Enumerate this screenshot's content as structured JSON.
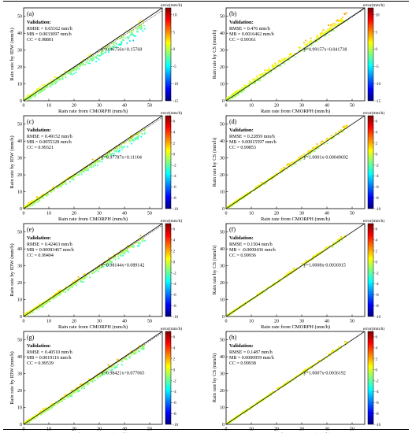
{
  "colorbar_label": "error(mm/h)",
  "colorbar_colors": [
    "#00007f",
    "#0000ff",
    "#007fff",
    "#00ffff",
    "#7fff7f",
    "#ffff00",
    "#ff7f00",
    "#ff0000",
    "#7f0000"
  ],
  "validation_label": "Validation:",
  "chart_data": [
    {
      "type": "scatter",
      "panel": "(a)",
      "xlabel": "Rain rate from CMORPH (mm/h)",
      "ylabel": "Rain rate by IDW (mm/h)",
      "xlim": [
        0,
        55
      ],
      "ylim": [
        0,
        55
      ],
      "xticks": [
        0,
        10,
        20,
        30,
        40,
        50
      ],
      "yticks": [
        0,
        10,
        20,
        30,
        40,
        50
      ],
      "rmse": "RMSE = 0.65162 mm/h",
      "mb": "MB = 0.0033097 mm/h",
      "cc": "CC = 0.98801",
      "fit": "y=0.96756x+0.15769",
      "slope": 0.96756,
      "intercept": 0.15769,
      "clim": [
        -15,
        12
      ],
      "cticks": [
        10,
        5,
        0,
        -5,
        -10,
        -15
      ],
      "spread": 1.6,
      "offset": -1.2
    },
    {
      "type": "scatter",
      "panel": "(b)",
      "xlabel": "Rain rate from CMORPH (mm/h)",
      "ylabel": "Rain rate by CS (mm/h)",
      "xlim": [
        0,
        55
      ],
      "ylim": [
        0,
        55
      ],
      "xticks": [
        0,
        10,
        20,
        30,
        40,
        50
      ],
      "yticks": [
        0,
        10,
        20,
        30,
        40,
        50
      ],
      "rmse": "RMSE = 0.476 mm/h",
      "mb": "MB = 0.0016462 mm/h",
      "cc": "CC = 0.99361",
      "fit": "y=0.99157x+0.041738",
      "slope": 0.99157,
      "intercept": 0.041738,
      "clim": [
        -15,
        12
      ],
      "cticks": [
        10,
        5,
        0,
        -5,
        -10,
        -15
      ],
      "spread": 1.3,
      "offset": 1.2
    },
    {
      "type": "scatter",
      "panel": "(c)",
      "xlabel": "Rain rate from CMORPH (mm/h)",
      "ylabel": "Rain rate by IDW (mm/h)",
      "xlim": [
        0,
        55
      ],
      "ylim": [
        0,
        55
      ],
      "xticks": [
        0,
        10,
        20,
        30,
        40,
        50
      ],
      "yticks": [
        0,
        10,
        20,
        30,
        40,
        50
      ],
      "rmse": "RMSE = 0.49152 mm/h",
      "mb": "MB = 0.0055328 mm/h",
      "cc": "CC = 0.99321",
      "fit": "y=0.97787x+0.11104",
      "slope": 0.97787,
      "intercept": 0.11104,
      "clim": [
        -10,
        7
      ],
      "cticks": [
        6,
        4,
        2,
        0,
        -2,
        -4,
        -6,
        -8,
        -10
      ],
      "spread": 1.2,
      "offset": -0.8
    },
    {
      "type": "scatter",
      "panel": "(d)",
      "xlabel": "Rain rate from CMORPH (mm/h)",
      "ylabel": "Rain rate by CS (mm/h)",
      "xlim": [
        0,
        55
      ],
      "ylim": [
        0,
        55
      ],
      "xticks": [
        0,
        10,
        20,
        30,
        40,
        50
      ],
      "yticks": [
        0,
        10,
        20,
        30,
        40,
        50
      ],
      "rmse": "RMSE = 0.22859 mm/h",
      "mb": "MB = 0.00015597 mm/h",
      "cc": "CC = 0.99853",
      "fit": "y=1.0001x-0.00049692",
      "slope": 1.0001,
      "intercept": -0.00049692,
      "clim": [
        -10,
        7
      ],
      "cticks": [
        6,
        4,
        2,
        0,
        -2,
        -4,
        -6,
        -8,
        -10
      ],
      "spread": 0.7,
      "offset": 0.3
    },
    {
      "type": "scatter",
      "panel": "(e)",
      "xlabel": "Rain rate from CMORPH (mm/h)",
      "ylabel": "Rain rate by IDW (mm/h)",
      "xlim": [
        0,
        55
      ],
      "ylim": [
        0,
        55
      ],
      "xticks": [
        0,
        10,
        20,
        30,
        40,
        50
      ],
      "yticks": [
        0,
        10,
        20,
        30,
        40,
        50
      ],
      "rmse": "RMSE = 0.42463 mm/h",
      "mb": "MB = 0.00083467 mm/h",
      "cc": "CC = 0.99494",
      "fit": "y=0.98144x+0.089142",
      "slope": 0.98144,
      "intercept": 0.089142,
      "clim": [
        -10,
        7
      ],
      "cticks": [
        6,
        4,
        2,
        0,
        -2,
        -4,
        -6,
        -8,
        -10
      ],
      "spread": 1.1,
      "offset": -0.6
    },
    {
      "type": "scatter",
      "panel": "(f)",
      "xlabel": "Rain rate from CMORPH (mm/h)",
      "ylabel": "Rain rate by CS (mm/h)",
      "xlim": [
        0,
        55
      ],
      "ylim": [
        0,
        55
      ],
      "xticks": [
        0,
        10,
        20,
        30,
        40,
        50
      ],
      "yticks": [
        0,
        10,
        20,
        30,
        40,
        50
      ],
      "rmse": "RMSE = 0.1504 mm/h",
      "mb": "MB = -0.0000436 mm/h",
      "cc": "CC = 0.99936",
      "fit": "y=1.0008x-0.0036915",
      "slope": 1.0008,
      "intercept": -0.0036915,
      "clim": [
        -10,
        7
      ],
      "cticks": [
        6,
        4,
        2,
        0,
        -2,
        -4,
        -6,
        -8,
        -10
      ],
      "spread": 0.5,
      "offset": 0.2
    },
    {
      "type": "scatter",
      "panel": "(g)",
      "xlabel": "Rain rate from CMORPH (mm/h)",
      "ylabel": "Rain rate by IDW (mm/h)",
      "xlim": [
        0,
        55
      ],
      "ylim": [
        0,
        55
      ],
      "xticks": [
        0,
        10,
        20,
        30,
        40,
        50
      ],
      "yticks": [
        0,
        10,
        20,
        30,
        40,
        50
      ],
      "rmse": "RMSE = 0.40510 mm/h",
      "mb": "MB = 0.0019116 mm/h",
      "cc": "CC = 0.99539",
      "fit": "y=0.98421x+0.077065",
      "slope": 0.98421,
      "intercept": 0.077065,
      "clim": [
        -10,
        7
      ],
      "cticks": [
        6,
        4,
        2,
        0,
        -2,
        -4,
        -6,
        -8,
        -10
      ],
      "spread": 1.0,
      "offset": -0.5
    },
    {
      "type": "scatter",
      "panel": "(h)",
      "xlabel": "Rain rate from CMORPH (mm/h)",
      "ylabel": "Rain rate by CS (mm/h)",
      "xlim": [
        0,
        55
      ],
      "ylim": [
        0,
        55
      ],
      "xticks": [
        0,
        10,
        20,
        30,
        40,
        50
      ],
      "yticks": [
        0,
        10,
        20,
        30,
        40,
        50
      ],
      "rmse": "RMSE = 0.1487 mm/h",
      "mb": "MB = 0.0000959 mm/h",
      "cc": "CC = 0.99938",
      "fit": "y=1.0007x-0.0036192",
      "slope": 1.0007,
      "intercept": -0.0036192,
      "clim": [
        -10,
        7
      ],
      "cticks": [
        6,
        4,
        2,
        0,
        -2,
        -4,
        -6,
        -8,
        -10
      ],
      "spread": 0.5,
      "offset": 0.2
    }
  ]
}
